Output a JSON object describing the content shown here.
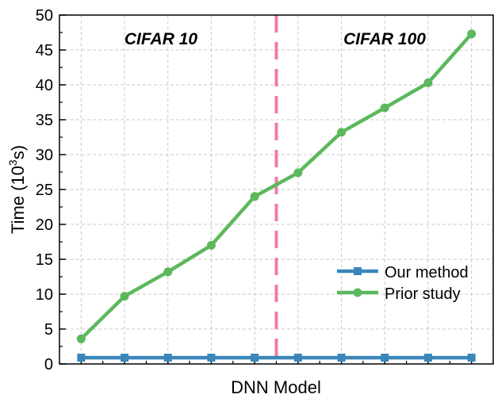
{
  "chart_data": {
    "type": "line",
    "ylabel_prefix": "Time (10",
    "ylabel_sup": "3",
    "ylabel_suffix": "s)",
    "xlabel": "DNN Model",
    "ylim": [
      0,
      50
    ],
    "yticks": [
      0,
      5,
      10,
      15,
      20,
      25,
      30,
      35,
      40,
      45,
      50
    ],
    "grid": true,
    "legend_position": "lower-right",
    "annotations": [
      {
        "text": "CIFAR 10"
      },
      {
        "text": "CIFAR 100"
      }
    ],
    "divider_after_index": 4,
    "x": [
      0,
      1,
      2,
      3,
      4,
      5,
      6,
      7,
      8,
      9
    ],
    "series": [
      {
        "name": "Our method",
        "color": "#3A86BB",
        "marker": "square",
        "values": [
          0.9,
          0.9,
          0.9,
          0.9,
          0.9,
          0.9,
          0.9,
          0.9,
          0.9,
          0.9
        ]
      },
      {
        "name": "Prior study",
        "color": "#5CB85C",
        "marker": "circle",
        "values": [
          3.6,
          9.7,
          13.2,
          17.0,
          24.0,
          27.4,
          33.2,
          36.7,
          40.3,
          47.3
        ]
      }
    ],
    "divider_color": "#F07BA3"
  }
}
